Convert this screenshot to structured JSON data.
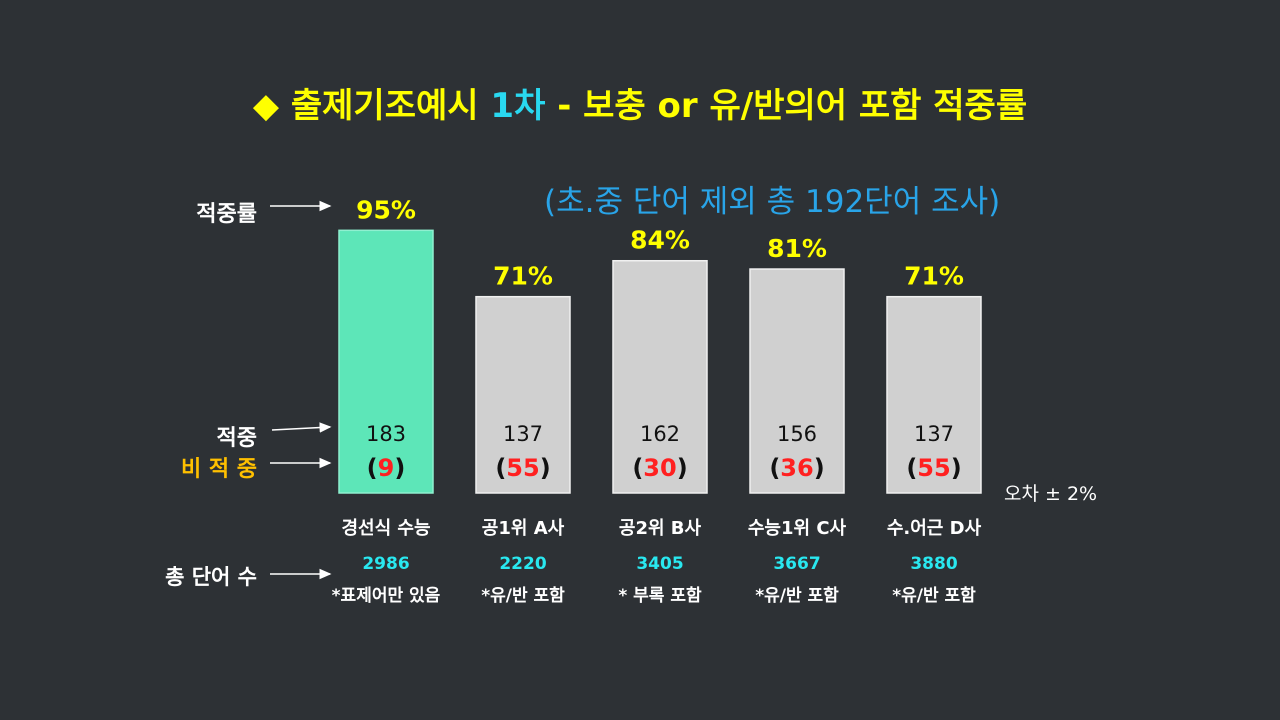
{
  "title": {
    "bullet": "◆",
    "prefix": "출제기조예시",
    "accent": "1차",
    "suffix": "- 보충 or 유/반의어 포함 적중률"
  },
  "subtitle": "(초.중 단어 제외 총 192단어 조사)",
  "row_labels": {
    "rate": "적중률",
    "hit": "적중",
    "miss": "비 적 중",
    "total": "총 단어 수"
  },
  "error_note": "오차 ± 2%",
  "colors": {
    "background": "#2d3135",
    "highlight_bar": "#5de6b8",
    "normal_bar": "#d0d0d0",
    "percent_text": "#ffff00",
    "miss_number": "#ff2020",
    "total_number": "#29e8f0",
    "miss_label": "#ffc000"
  },
  "chart_data": {
    "type": "bar",
    "categories": [
      "경선식 수능",
      "공1위 A사",
      "공2위 B사",
      "수능1위 C사",
      "수.어근 D사"
    ],
    "values": [
      95,
      71,
      84,
      81,
      71
    ],
    "value_labels": [
      "95%",
      "71%",
      "84%",
      "81%",
      "71%"
    ],
    "hits": [
      "183",
      "137",
      "162",
      "156",
      "137"
    ],
    "misses": [
      "9",
      "55",
      "30",
      "36",
      "55"
    ],
    "totals": [
      "2986",
      "2220",
      "3405",
      "3667",
      "3880"
    ],
    "notes": [
      "*표제어만 있음",
      "*유/반 포함",
      "* 부록 포함",
      "*유/반 포함",
      "*유/반 포함"
    ],
    "highlight_index": 0,
    "unit": "%",
    "ylim": [
      0,
      100
    ],
    "grid": false,
    "legend": "none"
  }
}
